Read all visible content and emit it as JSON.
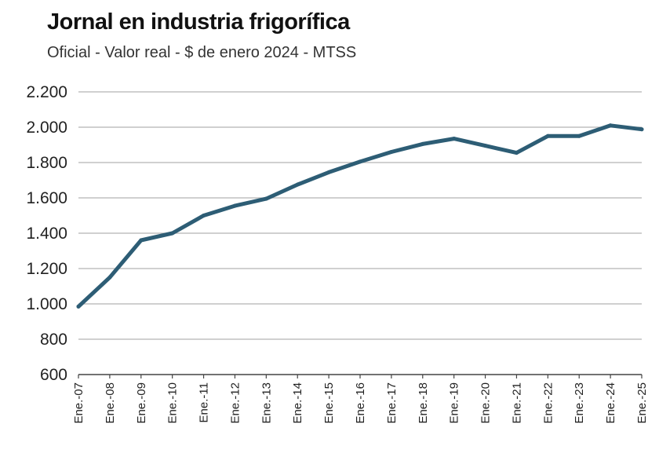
{
  "title": "Jornal en industria frigorífica",
  "subtitle": "Oficial - Valor real - $ de enero 2024 - MTSS",
  "colors": {
    "line": "#2d5d75",
    "grid": "#b5b5b5",
    "axis": "#444444"
  },
  "chart_data": {
    "type": "line",
    "title": "Jornal en industria frigorífica",
    "subtitle": "Oficial - Valor real - $ de enero 2024 - MTSS",
    "xlabel": "",
    "ylabel": "",
    "ylim": [
      600,
      2200
    ],
    "yticks": [
      600,
      800,
      1000,
      1200,
      1400,
      1600,
      1800,
      2000,
      2200
    ],
    "ytick_labels": [
      "600",
      "800",
      "1.000",
      "1.200",
      "1.400",
      "1.600",
      "1.800",
      "2.000",
      "2.200"
    ],
    "grid": true,
    "categories": [
      "Ene.-07",
      "Ene.-08",
      "Ene.-09",
      "Ene.-10",
      "Ene.-11",
      "Ene.-12",
      "Ene.-13",
      "Ene.-14",
      "Ene.-15",
      "Ene.-16",
      "Ene.-17",
      "Ene.-18",
      "Ene.-19",
      "Ene.-20",
      "Ene.-21",
      "Ene.-22",
      "Ene.-23",
      "Ene.-24",
      "Ene.-25"
    ],
    "series": [
      {
        "values": [
          985,
          1150,
          1360,
          1400,
          1500,
          1555,
          1595,
          1675,
          1745,
          1805,
          1860,
          1905,
          1935,
          1895,
          1855,
          1950,
          1950,
          2010,
          1988
        ]
      }
    ]
  }
}
